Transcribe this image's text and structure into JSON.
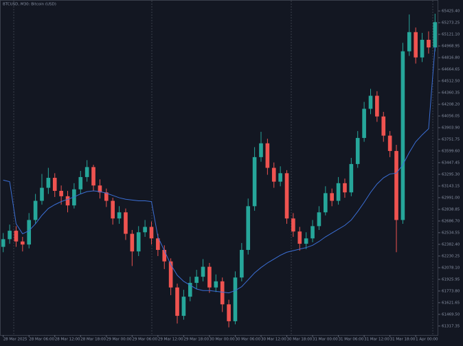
{
  "chart_data": {
    "type": "candlestick",
    "title": "BTCUSD, M30: Bitcoin (USD)",
    "categories": [
      "28 Mar 2025",
      null,
      null,
      null,
      "28 Mar 06:00",
      null,
      null,
      null,
      "28 Mar 12:00",
      null,
      null,
      null,
      "28 Mar 18:00",
      null,
      null,
      null,
      "29 Mar 00:00",
      null,
      null,
      null,
      "29 Mar 06:00",
      null,
      null,
      null,
      "29 Mar 12:00",
      null,
      null,
      null,
      "29 Mar 18:00",
      null,
      null,
      null,
      "30 Mar 00:00",
      null,
      null,
      null,
      "30 Mar 06:00",
      null,
      null,
      null,
      "30 Mar 12:00",
      null,
      null,
      null,
      "30 Mar 18:00",
      null,
      null,
      null,
      "31 Mar 00:00",
      null,
      null,
      null,
      "31 Mar 06:00",
      null,
      null,
      null,
      "31 Mar 12:00",
      null,
      null,
      null,
      "31 Mar 18:00",
      null,
      null,
      null,
      "1 Apr 00:00",
      null,
      null,
      null
    ],
    "open": [
      62350,
      62450,
      62560,
      62420,
      62380,
      62700,
      62950,
      63120,
      63250,
      63080,
      63010,
      62890,
      63100,
      63260,
      63390,
      63150,
      63060,
      62950,
      62720,
      62800,
      62520,
      62290,
      62540,
      62610,
      62460,
      62310,
      62160,
      61820,
      61450,
      61700,
      61880,
      61960,
      62090,
      61820,
      61900,
      61600,
      61380,
      61950,
      62310,
      62880,
      63520,
      63700,
      63380,
      63200,
      63310,
      62720,
      62550,
      62390,
      62460,
      62620,
      62800,
      63050,
      62950,
      63180,
      63060,
      63430,
      63770,
      64150,
      64320,
      64050,
      63800,
      63600,
      62700,
      64900,
      65150,
      64820,
      65050,
      64950
    ],
    "high": [
      62530,
      62640,
      62620,
      62480,
      62790,
      63040,
      63300,
      63380,
      63310,
      63150,
      63080,
      63180,
      63340,
      63480,
      63420,
      63230,
      63110,
      62990,
      62880,
      62850,
      62570,
      62620,
      62700,
      62680,
      62520,
      62370,
      62200,
      61870,
      61790,
      61960,
      62050,
      62190,
      62140,
      61990,
      61950,
      61660,
      62030,
      62400,
      62980,
      63650,
      63850,
      63760,
      63450,
      63400,
      63350,
      62790,
      62610,
      62540,
      62700,
      62880,
      63140,
      63110,
      63260,
      63240,
      63510,
      63860,
      64240,
      64410,
      64380,
      64110,
      63860,
      63680,
      65010,
      65380,
      65210,
      65140,
      65160,
      65390
    ],
    "low": [
      62280,
      62390,
      62350,
      62290,
      62330,
      62650,
      62900,
      63040,
      63000,
      62900,
      62800,
      62850,
      63040,
      63200,
      63080,
      62980,
      62870,
      62640,
      62650,
      62440,
      62100,
      62230,
      62480,
      62380,
      62230,
      62060,
      61720,
      61350,
      61400,
      61640,
      61800,
      61900,
      61750,
      61760,
      61500,
      61300,
      61340,
      61900,
      62250,
      62820,
      63460,
      63290,
      63120,
      63140,
      62650,
      62480,
      62300,
      62320,
      62410,
      62570,
      62760,
      62880,
      62900,
      62990,
      63010,
      63380,
      63720,
      64080,
      63980,
      63720,
      63520,
      62280,
      62650,
      64840,
      64740,
      64760,
      64870,
      64900
    ],
    "close": [
      62450,
      62560,
      62420,
      62380,
      62700,
      62950,
      63120,
      63250,
      63080,
      63010,
      62890,
      63100,
      63260,
      63390,
      63150,
      63060,
      62950,
      62720,
      62800,
      62520,
      62290,
      62540,
      62610,
      62460,
      62310,
      62160,
      61820,
      61450,
      61700,
      61880,
      61960,
      62090,
      61820,
      61900,
      61600,
      61380,
      61950,
      62310,
      62880,
      63520,
      63700,
      63380,
      63200,
      63310,
      62720,
      62550,
      62390,
      62460,
      62620,
      62800,
      63050,
      62950,
      63180,
      63060,
      63430,
      63770,
      64150,
      64320,
      64050,
      63800,
      63600,
      62700,
      64900,
      65150,
      64820,
      65050,
      64950,
      65280
    ],
    "ma_values": [
      63220,
      63200,
      62650,
      62520,
      62560,
      62650,
      62760,
      62850,
      62900,
      62940,
      62970,
      63000,
      63040,
      63070,
      63080,
      63070,
      63050,
      63020,
      62990,
      62970,
      62960,
      62950,
      62950,
      62940,
      62480,
      62300,
      62120,
      61980,
      61900,
      61850,
      61800,
      61780,
      61780,
      61770,
      61760,
      61750,
      61780,
      61830,
      61920,
      62010,
      62080,
      62140,
      62190,
      62240,
      62280,
      62300,
      62320,
      62340,
      62370,
      62420,
      62480,
      62530,
      62580,
      62630,
      62700,
      62810,
      62930,
      63060,
      63170,
      63250,
      63300,
      63310,
      63420,
      63580,
      63720,
      63810,
      63890,
      64960
    ],
    "ma_color": "#3b6fd6",
    "up_color": "#26a69a",
    "down_color": "#ef5350",
    "ylim": [
      61200,
      65560
    ],
    "yticks": [
      {
        "value": 65425.4,
        "label": "65425.40"
      },
      65273.25,
      {
        "value": 65121.1,
        "label": "65121.10"
      },
      64968.95,
      {
        "value": 64816.8,
        "label": "64816.80"
      },
      64664.65,
      {
        "value": 64512.5,
        "label": "64512.50"
      },
      64360.35,
      {
        "value": 64208.2,
        "label": "64208.20"
      },
      64056.05,
      {
        "value": 63903.9,
        "label": "63903.90"
      },
      63751.75,
      {
        "value": 63599.6,
        "label": "63599.60"
      },
      63447.45,
      {
        "value": 63295.3,
        "label": "63295.30"
      },
      63143.15,
      {
        "value": 62991,
        "label": "62991.00"
      },
      62838.85,
      {
        "value": 62686.7,
        "label": "62686.70"
      },
      62534.55,
      {
        "value": 62382.4,
        "label": "62382.40"
      },
      62230.25,
      {
        "value": 62078.1,
        "label": "62078.10"
      },
      61925.95,
      {
        "value": 61773.8,
        "label": "61773.80"
      },
      61621.65,
      {
        "value": 61469.5,
        "label": "61469.50"
      },
      61317.35
    ]
  }
}
